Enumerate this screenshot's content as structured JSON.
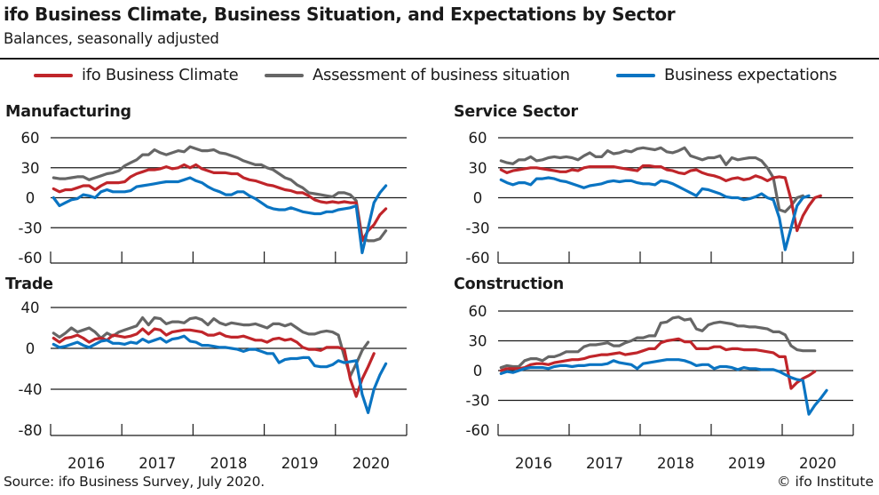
{
  "header": {
    "title": "ifo Business Climate, Business Situation, and Expectations by Sector",
    "subtitle": "Balances, seasonally adjusted"
  },
  "legend": [
    {
      "label": "ifo Business Climate",
      "color": "#c0252a"
    },
    {
      "label": "Assessment of business situation",
      "color": "#666666"
    },
    {
      "label": "Business expectations",
      "color": "#0a74c2"
    }
  ],
  "footer": {
    "source": "Source: ifo Business Survey, July 2020.",
    "copyright": "© ifo Institute"
  },
  "chart_data": [
    {
      "type": "line",
      "title": "Manufacturing",
      "xlabel": "",
      "ylabel": "",
      "x_start": "2016-01",
      "x_end": "2020-07",
      "frequency": "monthly",
      "x_ticks": [
        "2016",
        "2017",
        "2018",
        "2019",
        "2020"
      ],
      "y_ticks": [
        60,
        30,
        0,
        -30,
        -60
      ],
      "ylim": [
        -60,
        60
      ],
      "xlim": [
        "2016-01",
        "2020-12"
      ],
      "grid": true,
      "series": [
        {
          "name": "ifo Business Climate",
          "color": "#c0252a",
          "values": [
            9,
            6,
            8,
            8,
            10,
            12,
            12,
            8,
            12,
            15,
            15,
            15,
            16,
            21,
            24,
            26,
            28,
            28,
            29,
            31,
            29,
            30,
            33,
            30,
            33,
            29,
            27,
            25,
            25,
            25,
            24,
            24,
            20,
            18,
            17,
            15,
            13,
            12,
            10,
            8,
            7,
            5,
            5,
            2,
            -2,
            -4,
            -5,
            -4,
            -5,
            -4,
            -5,
            -5,
            -43,
            -33,
            -27,
            -17,
            -11
          ]
        },
        {
          "name": "Assessment of business situation",
          "color": "#666666",
          "values": [
            20,
            19,
            19,
            20,
            21,
            21,
            18,
            20,
            22,
            24,
            25,
            27,
            32,
            35,
            38,
            43,
            43,
            48,
            45,
            43,
            45,
            47,
            46,
            51,
            49,
            47,
            47,
            48,
            45,
            44,
            42,
            40,
            37,
            35,
            33,
            33,
            30,
            28,
            24,
            20,
            18,
            13,
            10,
            5,
            4,
            3,
            2,
            1,
            5,
            5,
            3,
            -3,
            -40,
            -43,
            -43,
            -41,
            -33
          ]
        },
        {
          "name": "Business expectations",
          "color": "#0a74c2",
          "values": [
            0,
            -8,
            -5,
            -2,
            -1,
            3,
            2,
            0,
            6,
            8,
            6,
            6,
            6,
            7,
            11,
            12,
            13,
            14,
            15,
            16,
            16,
            16,
            18,
            20,
            17,
            15,
            11,
            8,
            6,
            3,
            3,
            6,
            6,
            2,
            -1,
            -5,
            -9,
            -11,
            -12,
            -12,
            -10,
            -12,
            -14,
            -15,
            -16,
            -16,
            -14,
            -14,
            -12,
            -11,
            -10,
            -8,
            -55,
            -30,
            -5,
            5,
            12
          ]
        }
      ]
    },
    {
      "type": "line",
      "title": "Service Sector",
      "xlabel": "",
      "ylabel": "",
      "x_start": "2016-01",
      "x_end": "2020-07",
      "frequency": "monthly",
      "x_ticks": [
        "2016",
        "2017",
        "2018",
        "2019",
        "2020"
      ],
      "y_ticks": [
        60,
        30,
        0,
        -30,
        -60
      ],
      "ylim": [
        -60,
        60
      ],
      "xlim": [
        "2016-01",
        "2020-12"
      ],
      "grid": true,
      "series": [
        {
          "name": "ifo Business Climate",
          "color": "#c0252a",
          "values": [
            28,
            25,
            27,
            28,
            29,
            30,
            30,
            29,
            28,
            27,
            26,
            26,
            28,
            27,
            30,
            31,
            31,
            31,
            31,
            31,
            30,
            29,
            28,
            27,
            32,
            32,
            31,
            31,
            28,
            27,
            25,
            24,
            27,
            28,
            25,
            23,
            22,
            20,
            17,
            19,
            20,
            18,
            19,
            22,
            20,
            17,
            20,
            21,
            20,
            -2,
            -33,
            -18,
            -8,
            0,
            2
          ]
        },
        {
          "name": "Assessment of business situation",
          "color": "#666666",
          "values": [
            37,
            35,
            34,
            38,
            38,
            41,
            37,
            38,
            40,
            41,
            40,
            41,
            40,
            38,
            42,
            45,
            41,
            41,
            47,
            44,
            45,
            47,
            46,
            49,
            50,
            49,
            48,
            50,
            46,
            45,
            47,
            50,
            42,
            40,
            38,
            40,
            40,
            42,
            33,
            40,
            38,
            39,
            40,
            40,
            37,
            30,
            20,
            -12,
            -14,
            -8,
            0,
            2
          ]
        },
        {
          "name": "Business expectations",
          "color": "#0a74c2",
          "values": [
            18,
            15,
            13,
            15,
            15,
            13,
            19,
            19,
            20,
            19,
            17,
            16,
            14,
            12,
            10,
            12,
            13,
            14,
            16,
            17,
            16,
            17,
            17,
            15,
            14,
            14,
            13,
            17,
            16,
            14,
            11,
            8,
            5,
            2,
            9,
            8,
            6,
            4,
            1,
            0,
            0,
            -2,
            -1,
            1,
            4,
            0,
            -2,
            -20,
            -52,
            -30,
            -8,
            0,
            2
          ]
        }
      ]
    },
    {
      "type": "line",
      "title": "Trade",
      "xlabel": "",
      "ylabel": "",
      "x_start": "2016-01",
      "x_end": "2020-07",
      "frequency": "monthly",
      "x_ticks": [
        "2016",
        "2017",
        "2018",
        "2019",
        "2020"
      ],
      "y_ticks": [
        40,
        0,
        -40,
        -80
      ],
      "ylim": [
        -80,
        40
      ],
      "xlim": [
        "2016-01",
        "2020-12"
      ],
      "grid": true,
      "series": [
        {
          "name": "ifo Business Climate",
          "color": "#c0252a",
          "values": [
            10,
            6,
            10,
            11,
            13,
            10,
            6,
            9,
            10,
            8,
            13,
            12,
            11,
            12,
            14,
            19,
            14,
            19,
            18,
            13,
            16,
            17,
            18,
            18,
            17,
            16,
            13,
            13,
            15,
            12,
            11,
            11,
            12,
            10,
            8,
            8,
            6,
            9,
            10,
            8,
            9,
            6,
            1,
            -1,
            -1,
            -2,
            1,
            1,
            1,
            -1,
            -30,
            -47,
            -30,
            -18,
            -5
          ]
        },
        {
          "name": "Assessment of business situation",
          "color": "#666666",
          "values": [
            15,
            11,
            15,
            20,
            16,
            18,
            20,
            16,
            10,
            15,
            12,
            16,
            18,
            20,
            22,
            30,
            23,
            30,
            29,
            24,
            26,
            26,
            25,
            29,
            30,
            28,
            23,
            29,
            25,
            23,
            25,
            24,
            23,
            23,
            24,
            22,
            20,
            24,
            24,
            22,
            24,
            20,
            16,
            14,
            14,
            16,
            17,
            16,
            13,
            -8,
            -27,
            -15,
            -2,
            6
          ]
        },
        {
          "name": "Business expectations",
          "color": "#0a74c2",
          "values": [
            4,
            1,
            2,
            4,
            6,
            3,
            1,
            4,
            7,
            8,
            5,
            5,
            4,
            6,
            5,
            9,
            6,
            8,
            10,
            6,
            9,
            10,
            12,
            7,
            6,
            3,
            3,
            2,
            1,
            1,
            0,
            -1,
            -3,
            -1,
            -1,
            -3,
            -5,
            -5,
            -14,
            -11,
            -10,
            -10,
            -9,
            -9,
            -17,
            -18,
            -18,
            -16,
            -12,
            -14,
            -13,
            -12,
            -45,
            -63,
            -40,
            -26,
            -15
          ]
        }
      ]
    },
    {
      "type": "line",
      "title": "Construction",
      "xlabel": "",
      "ylabel": "",
      "x_start": "2016-01",
      "x_end": "2020-07",
      "frequency": "monthly",
      "x_ticks": [
        "2016",
        "2017",
        "2018",
        "2019",
        "2020"
      ],
      "y_ticks": [
        60,
        30,
        0,
        -30,
        -60
      ],
      "ylim": [
        -60,
        60
      ],
      "xlim": [
        "2016-01",
        "2020-12"
      ],
      "grid": true,
      "series": [
        {
          "name": "ifo Business Climate",
          "color": "#c0252a",
          "values": [
            0,
            2,
            2,
            2,
            3,
            6,
            7,
            7,
            6,
            8,
            9,
            10,
            11,
            11,
            12,
            14,
            15,
            16,
            16,
            17,
            18,
            16,
            17,
            18,
            20,
            22,
            22,
            28,
            30,
            31,
            32,
            29,
            29,
            22,
            22,
            22,
            24,
            24,
            21,
            22,
            22,
            21,
            21,
            21,
            20,
            19,
            18,
            14,
            14,
            -18,
            -12,
            -8,
            -5,
            -1
          ]
        },
        {
          "name": "Assessment of business situation",
          "color": "#666666",
          "values": [
            3,
            5,
            4,
            4,
            10,
            12,
            12,
            10,
            14,
            14,
            16,
            19,
            19,
            19,
            24,
            26,
            26,
            27,
            28,
            25,
            25,
            28,
            30,
            33,
            33,
            35,
            35,
            48,
            49,
            53,
            54,
            51,
            52,
            42,
            40,
            46,
            48,
            49,
            48,
            47,
            45,
            45,
            44,
            44,
            43,
            42,
            39,
            39,
            36,
            25,
            21,
            20,
            20,
            20
          ]
        },
        {
          "name": "Business expectations",
          "color": "#0a74c2",
          "values": [
            -3,
            -1,
            -2,
            0,
            2,
            3,
            3,
            3,
            2,
            4,
            5,
            5,
            4,
            5,
            5,
            6,
            6,
            6,
            7,
            10,
            8,
            7,
            6,
            2,
            7,
            8,
            9,
            10,
            11,
            11,
            11,
            10,
            8,
            5,
            6,
            6,
            2,
            4,
            4,
            3,
            1,
            3,
            2,
            2,
            1,
            1,
            1,
            -1,
            -4,
            -7,
            -9,
            -10,
            -44,
            -35,
            -28,
            -20
          ]
        }
      ]
    }
  ]
}
